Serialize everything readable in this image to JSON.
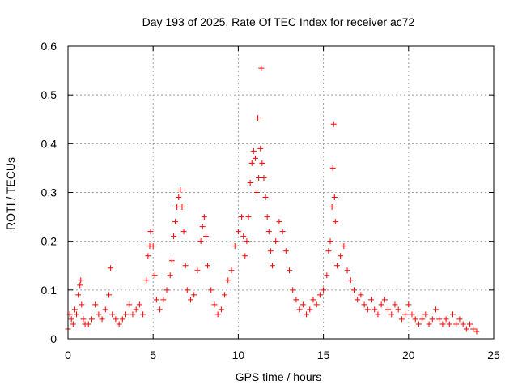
{
  "chart_data": {
    "type": "scatter",
    "title": "Day 193 of 2025, Rate Of TEC Index for receiver ac72",
    "xlabel": "GPS time / hours",
    "ylabel": "ROTI / TECUs",
    "xlim": [
      0,
      25
    ],
    "ylim": [
      0,
      0.6
    ],
    "x_ticks": [
      "0",
      "5",
      "10",
      "15",
      "20",
      "25"
    ],
    "y_ticks": [
      "0",
      "0.1",
      "0.2",
      "0.3",
      "0.4",
      "0.5",
      "0.6"
    ],
    "grid": true,
    "marker": "+",
    "color": "#ff0000",
    "series": [
      {
        "name": "",
        "points": [
          [
            0.0,
            0.02
          ],
          [
            0.1,
            0.05
          ],
          [
            0.2,
            0.04
          ],
          [
            0.3,
            0.03
          ],
          [
            0.4,
            0.06
          ],
          [
            0.5,
            0.05
          ],
          [
            0.6,
            0.09
          ],
          [
            0.7,
            0.11
          ],
          [
            0.75,
            0.12
          ],
          [
            0.8,
            0.07
          ],
          [
            0.9,
            0.04
          ],
          [
            1.0,
            0.03
          ],
          [
            1.2,
            0.03
          ],
          [
            1.4,
            0.04
          ],
          [
            1.6,
            0.07
          ],
          [
            1.8,
            0.05
          ],
          [
            2.0,
            0.04
          ],
          [
            2.2,
            0.06
          ],
          [
            2.4,
            0.09
          ],
          [
            2.5,
            0.145
          ],
          [
            2.6,
            0.05
          ],
          [
            2.8,
            0.04
          ],
          [
            3.0,
            0.03
          ],
          [
            3.2,
            0.04
          ],
          [
            3.4,
            0.05
          ],
          [
            3.6,
            0.07
          ],
          [
            3.8,
            0.05
          ],
          [
            4.0,
            0.06
          ],
          [
            4.2,
            0.07
          ],
          [
            4.4,
            0.05
          ],
          [
            4.6,
            0.12
          ],
          [
            4.7,
            0.17
          ],
          [
            4.8,
            0.19
          ],
          [
            4.85,
            0.22
          ],
          [
            5.0,
            0.19
          ],
          [
            5.1,
            0.13
          ],
          [
            5.2,
            0.08
          ],
          [
            5.4,
            0.06
          ],
          [
            5.6,
            0.08
          ],
          [
            5.8,
            0.1
          ],
          [
            6.0,
            0.13
          ],
          [
            6.1,
            0.16
          ],
          [
            6.2,
            0.21
          ],
          [
            6.3,
            0.24
          ],
          [
            6.4,
            0.27
          ],
          [
            6.5,
            0.29
          ],
          [
            6.6,
            0.305
          ],
          [
            6.7,
            0.27
          ],
          [
            6.8,
            0.22
          ],
          [
            6.9,
            0.15
          ],
          [
            7.0,
            0.1
          ],
          [
            7.2,
            0.08
          ],
          [
            7.4,
            0.09
          ],
          [
            7.6,
            0.14
          ],
          [
            7.8,
            0.2
          ],
          [
            7.9,
            0.23
          ],
          [
            8.0,
            0.25
          ],
          [
            8.1,
            0.21
          ],
          [
            8.2,
            0.15
          ],
          [
            8.4,
            0.1
          ],
          [
            8.6,
            0.07
          ],
          [
            8.8,
            0.05
          ],
          [
            9.0,
            0.06
          ],
          [
            9.2,
            0.09
          ],
          [
            9.4,
            0.12
          ],
          [
            9.6,
            0.14
          ],
          [
            9.8,
            0.19
          ],
          [
            10.0,
            0.22
          ],
          [
            10.2,
            0.25
          ],
          [
            10.3,
            0.21
          ],
          [
            10.4,
            0.17
          ],
          [
            10.5,
            0.2
          ],
          [
            10.6,
            0.25
          ],
          [
            10.7,
            0.32
          ],
          [
            10.8,
            0.36
          ],
          [
            10.9,
            0.385
          ],
          [
            11.0,
            0.37
          ],
          [
            11.1,
            0.3
          ],
          [
            11.15,
            0.453
          ],
          [
            11.2,
            0.33
          ],
          [
            11.3,
            0.39
          ],
          [
            11.35,
            0.555
          ],
          [
            11.4,
            0.36
          ],
          [
            11.5,
            0.33
          ],
          [
            11.6,
            0.29
          ],
          [
            11.7,
            0.25
          ],
          [
            11.8,
            0.22
          ],
          [
            11.9,
            0.18
          ],
          [
            12.0,
            0.15
          ],
          [
            12.2,
            0.2
          ],
          [
            12.4,
            0.24
          ],
          [
            12.6,
            0.22
          ],
          [
            12.8,
            0.18
          ],
          [
            13.0,
            0.14
          ],
          [
            13.2,
            0.1
          ],
          [
            13.4,
            0.08
          ],
          [
            13.6,
            0.06
          ],
          [
            13.8,
            0.07
          ],
          [
            14.0,
            0.05
          ],
          [
            14.2,
            0.06
          ],
          [
            14.4,
            0.08
          ],
          [
            14.6,
            0.07
          ],
          [
            14.8,
            0.09
          ],
          [
            15.0,
            0.1
          ],
          [
            15.2,
            0.13
          ],
          [
            15.3,
            0.18
          ],
          [
            15.4,
            0.2
          ],
          [
            15.5,
            0.27
          ],
          [
            15.55,
            0.35
          ],
          [
            15.6,
            0.44
          ],
          [
            15.65,
            0.29
          ],
          [
            15.7,
            0.24
          ],
          [
            15.8,
            0.15
          ],
          [
            16.0,
            0.17
          ],
          [
            16.2,
            0.19
          ],
          [
            16.4,
            0.14
          ],
          [
            16.6,
            0.12
          ],
          [
            16.8,
            0.1
          ],
          [
            17.0,
            0.08
          ],
          [
            17.2,
            0.09
          ],
          [
            17.4,
            0.07
          ],
          [
            17.6,
            0.06
          ],
          [
            17.8,
            0.08
          ],
          [
            18.0,
            0.06
          ],
          [
            18.2,
            0.05
          ],
          [
            18.4,
            0.07
          ],
          [
            18.6,
            0.08
          ],
          [
            18.8,
            0.06
          ],
          [
            19.0,
            0.05
          ],
          [
            19.2,
            0.07
          ],
          [
            19.4,
            0.06
          ],
          [
            19.6,
            0.04
          ],
          [
            19.8,
            0.05
          ],
          [
            20.0,
            0.07
          ],
          [
            20.2,
            0.05
          ],
          [
            20.4,
            0.04
          ],
          [
            20.6,
            0.03
          ],
          [
            20.8,
            0.04
          ],
          [
            21.0,
            0.05
          ],
          [
            21.2,
            0.03
          ],
          [
            21.4,
            0.04
          ],
          [
            21.6,
            0.06
          ],
          [
            21.8,
            0.04
          ],
          [
            22.0,
            0.03
          ],
          [
            22.2,
            0.04
          ],
          [
            22.4,
            0.03
          ],
          [
            22.6,
            0.05
          ],
          [
            22.8,
            0.03
          ],
          [
            23.0,
            0.04
          ],
          [
            23.2,
            0.03
          ],
          [
            23.4,
            0.02
          ],
          [
            23.6,
            0.03
          ],
          [
            23.8,
            0.02
          ],
          [
            24.0,
            0.015
          ]
        ]
      }
    ]
  }
}
